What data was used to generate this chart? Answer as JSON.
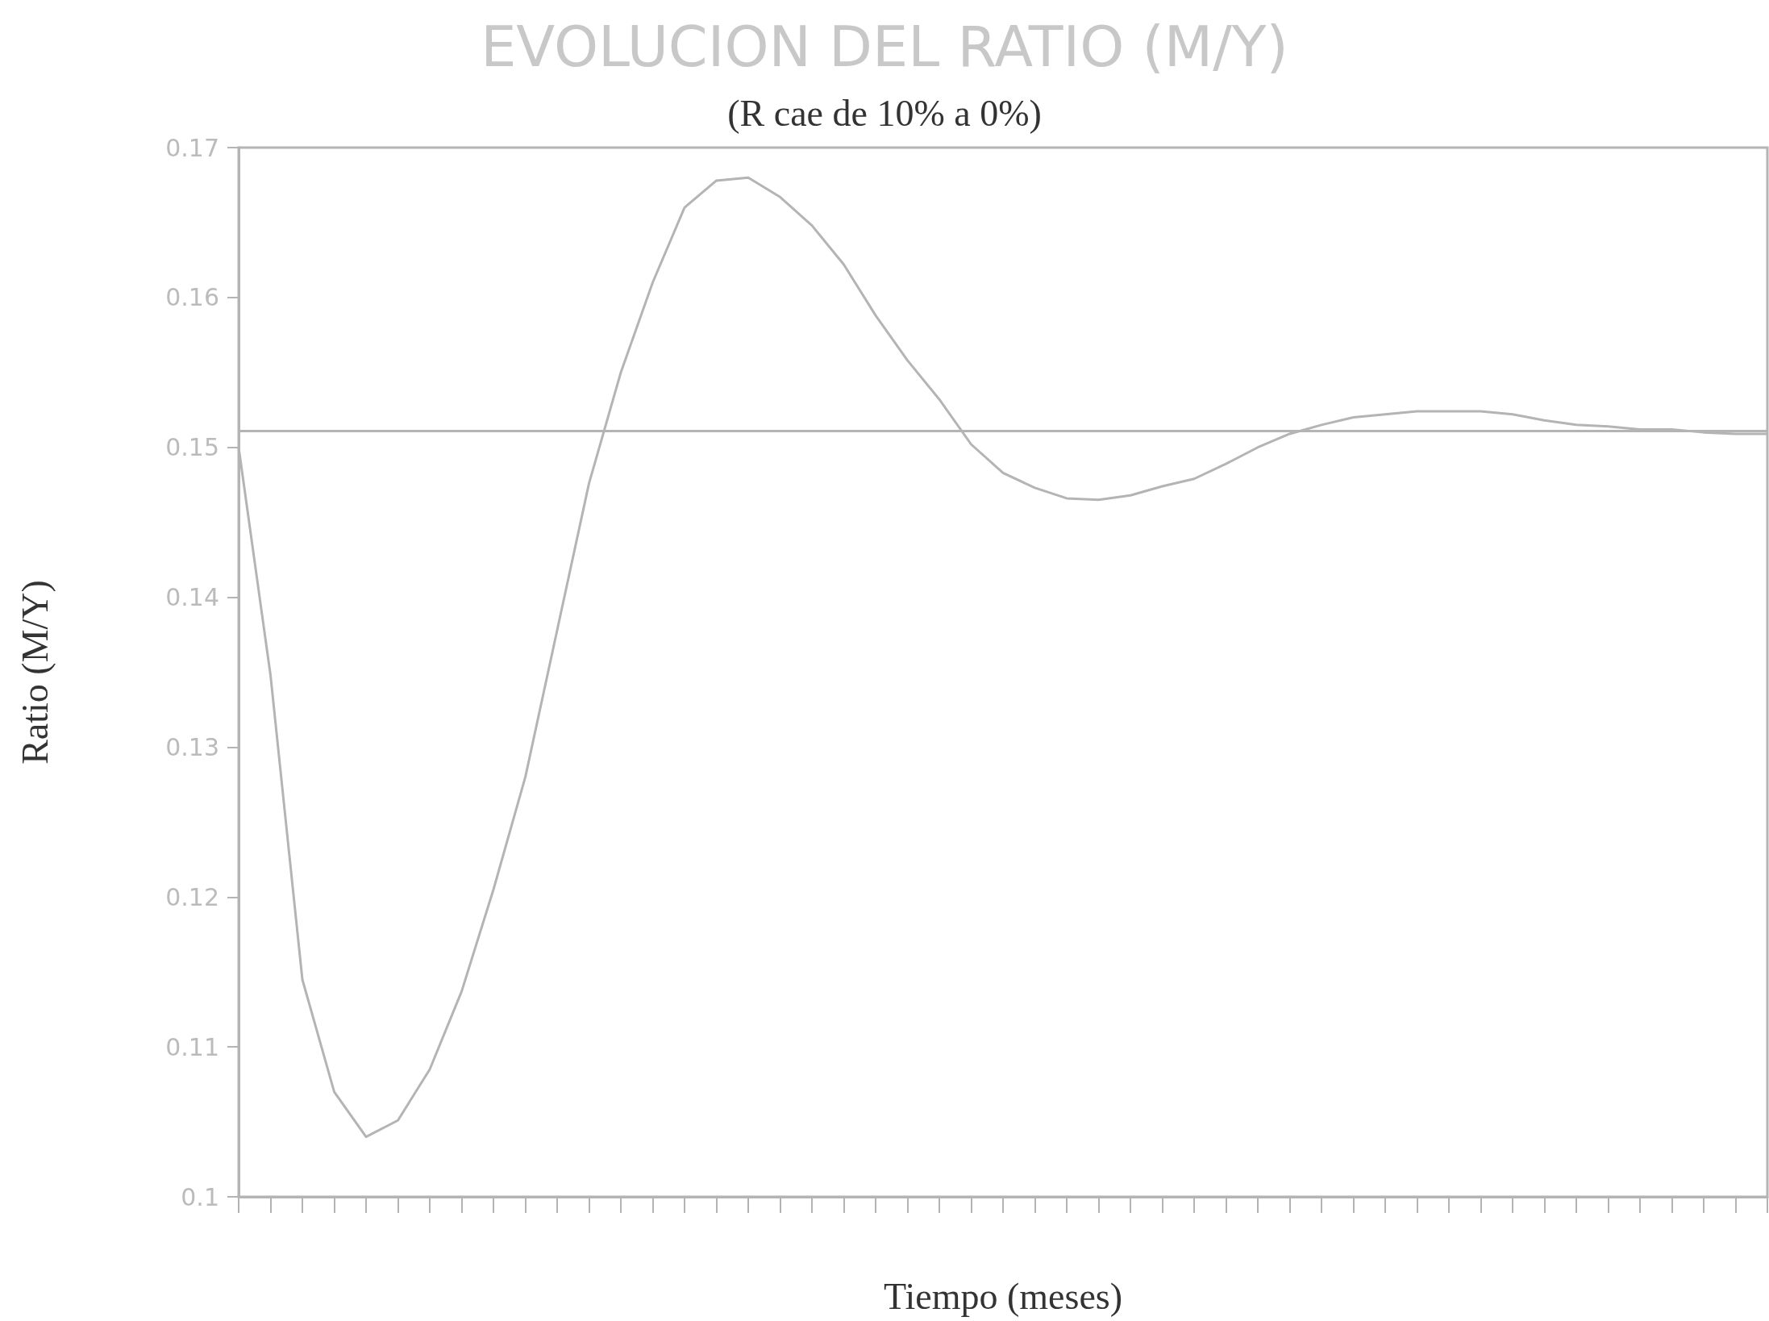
{
  "chart_data": {
    "type": "line",
    "title": "EVOLUCION DEL RATIO (M/Y)",
    "subtitle": "(R cae de 10% a 0%)",
    "xlabel": "Tiempo (meses)",
    "ylabel": "Ratio (M/Y)",
    "categories": [
      null,
      null,
      null,
      null,
      null,
      null,
      null,
      null,
      null,
      null,
      null,
      null,
      null,
      null,
      null,
      null,
      null,
      null,
      null,
      null,
      null,
      null,
      null,
      null,
      null,
      null,
      null,
      null,
      null,
      null,
      null,
      null,
      null,
      null,
      null,
      null,
      null,
      null,
      null,
      null,
      null,
      null,
      null,
      null,
      null,
      null,
      null,
      null,
      null
    ],
    "series": [
      {
        "color": "#b4b4b4",
        "values": [
          0.15,
          0.1348,
          0.1145,
          0.107,
          0.104,
          0.1051,
          0.1085,
          0.1137,
          0.1205,
          0.128,
          0.1378,
          0.1476,
          0.155,
          0.161,
          0.166,
          0.1678,
          0.168,
          0.1667,
          0.1648,
          0.1622,
          0.1588,
          0.1558,
          0.1532,
          0.1502,
          0.1483,
          0.1473,
          0.1466,
          0.1465,
          0.1468,
          0.1474,
          0.1479,
          0.1489,
          0.15,
          0.1509,
          0.1515,
          0.152,
          0.1522,
          0.1524,
          0.1524,
          0.1524,
          0.1522,
          0.1518,
          0.1515,
          0.1514,
          0.1512,
          0.1512,
          0.151,
          0.1509,
          0.1509
        ]
      }
    ],
    "ylim": [
      0.1,
      0.17
    ],
    "yticks": [
      0.1,
      0.11,
      0.12,
      0.13,
      0.14,
      0.15,
      0.16,
      0.17
    ],
    "ref_lines": [
      {
        "axis": "y",
        "value": 0.1511,
        "color": "#b4b4b4"
      }
    ],
    "tick_labels": "y",
    "grid": false,
    "marker": "none",
    "line_style": "solid"
  }
}
